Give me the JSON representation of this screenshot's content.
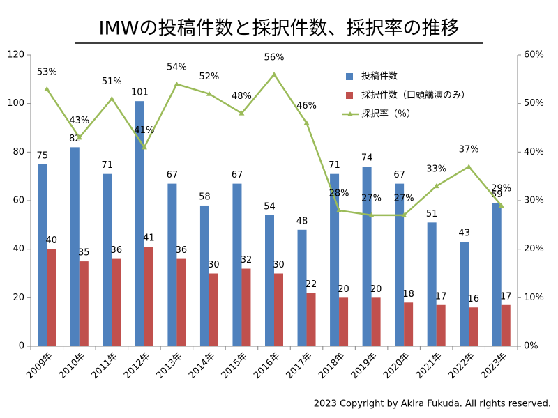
{
  "chart_data": {
    "type": "bar",
    "title": "IMWの投稿件数と採択件数、採択率の推移",
    "footnote": "2023 Copyright by Akira Fukuda. All rights reserved.",
    "categories": [
      "2009年",
      "2010年",
      "2011年",
      "2012年",
      "2013年",
      "2014年",
      "2015年",
      "2016年",
      "2017年",
      "2018年",
      "2019年",
      "2020年",
      "2021年",
      "2022年",
      "2023年"
    ],
    "series": [
      {
        "name": "投稿件数",
        "type": "bar",
        "color": "#4f81bd",
        "values": [
          75,
          82,
          71,
          101,
          67,
          58,
          67,
          54,
          48,
          71,
          74,
          67,
          51,
          43,
          59
        ]
      },
      {
        "name": "採択件数（口頭講演のみ）",
        "type": "bar",
        "color": "#c0504d",
        "values": [
          40,
          35,
          36,
          41,
          36,
          30,
          32,
          30,
          22,
          20,
          20,
          18,
          17,
          16,
          17
        ]
      },
      {
        "name": "採択率（％）",
        "type": "line",
        "axis": "y2",
        "color": "#9bbb59",
        "values": [
          53,
          43,
          51,
          41,
          54,
          52,
          48,
          56,
          46,
          28,
          27,
          27,
          33,
          37,
          29
        ],
        "value_labels": [
          "53%",
          "43%",
          "51%",
          "41%",
          "54%",
          "52%",
          "48%",
          "56%",
          "46%",
          "28%",
          "27%",
          "27%",
          "33%",
          "37%",
          "29%"
        ]
      }
    ],
    "ylim": [
      0,
      120
    ],
    "yticks": [
      0,
      20,
      40,
      60,
      80,
      100,
      120
    ],
    "y2lim": [
      0,
      60
    ],
    "y2ticks": [
      {
        "value": 0,
        "label": "0%"
      },
      {
        "value": 10,
        "label": "10%"
      },
      {
        "value": 20,
        "label": "20%"
      },
      {
        "value": 30,
        "label": "30%"
      },
      {
        "value": 40,
        "label": "40%"
      },
      {
        "value": 50,
        "label": "50%"
      },
      {
        "value": 60,
        "label": "60%"
      }
    ],
    "legend": "top-right",
    "grid": false
  }
}
